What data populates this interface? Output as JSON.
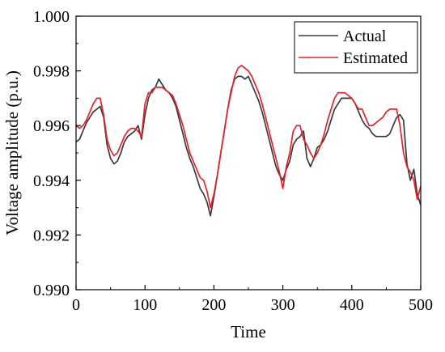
{
  "chart_data": {
    "type": "line",
    "title": "",
    "xlabel": "Time",
    "ylabel": "Voltage amplitude (p.u.)",
    "xlim": [
      0,
      500
    ],
    "ylim": [
      0.99,
      1.0
    ],
    "xticks": [
      0,
      100,
      200,
      300,
      400,
      500
    ],
    "yticks": [
      0.99,
      0.992,
      0.994,
      0.996,
      0.998,
      1.0
    ],
    "xtick_labels": [
      "0",
      "100",
      "200",
      "300",
      "400",
      "500"
    ],
    "ytick_labels": [
      "0.990",
      "0.992",
      "0.994",
      "0.996",
      "0.998",
      "1.000"
    ],
    "grid": false,
    "legend_position": "top-right",
    "colors": {
      "Actual": "#3a3a3a",
      "Estimated": "#e3232a"
    },
    "series": [
      {
        "name": "Actual",
        "x": [
          0,
          5,
          10,
          15,
          20,
          25,
          30,
          35,
          40,
          45,
          50,
          55,
          60,
          65,
          70,
          75,
          80,
          85,
          90,
          95,
          100,
          105,
          110,
          115,
          120,
          125,
          130,
          135,
          140,
          145,
          150,
          155,
          160,
          165,
          170,
          175,
          180,
          185,
          190,
          195,
          200,
          205,
          210,
          215,
          220,
          225,
          230,
          235,
          240,
          245,
          250,
          255,
          260,
          265,
          270,
          275,
          280,
          285,
          290,
          295,
          300,
          305,
          310,
          315,
          320,
          325,
          330,
          335,
          340,
          345,
          350,
          355,
          360,
          365,
          370,
          375,
          380,
          385,
          390,
          395,
          400,
          405,
          410,
          415,
          420,
          425,
          430,
          435,
          440,
          445,
          450,
          455,
          460,
          465,
          470,
          475,
          480,
          485,
          490,
          495,
          500
        ],
        "y": [
          0.9954,
          0.9955,
          0.9958,
          0.9961,
          0.9963,
          0.9965,
          0.9966,
          0.9967,
          0.9963,
          0.9953,
          0.9948,
          0.9946,
          0.9947,
          0.995,
          0.9954,
          0.9956,
          0.9957,
          0.9958,
          0.996,
          0.9955,
          0.9964,
          0.997,
          0.9973,
          0.9974,
          0.9977,
          0.9975,
          0.9973,
          0.9972,
          0.997,
          0.9967,
          0.9962,
          0.9957,
          0.9952,
          0.9948,
          0.9945,
          0.9941,
          0.9937,
          0.9935,
          0.9932,
          0.9927,
          0.9934,
          0.9942,
          0.995,
          0.9958,
          0.9966,
          0.9973,
          0.9977,
          0.9978,
          0.9978,
          0.9977,
          0.9978,
          0.9975,
          0.9972,
          0.9969,
          0.9965,
          0.996,
          0.9955,
          0.995,
          0.9945,
          0.9942,
          0.994,
          0.9944,
          0.9947,
          0.9953,
          0.9955,
          0.9956,
          0.9958,
          0.9948,
          0.9945,
          0.9948,
          0.9952,
          0.9953,
          0.9955,
          0.9958,
          0.9962,
          0.9966,
          0.9968,
          0.997,
          0.997,
          0.997,
          0.997,
          0.9968,
          0.9965,
          0.9962,
          0.996,
          0.9959,
          0.9957,
          0.9956,
          0.9956,
          0.9956,
          0.9956,
          0.9957,
          0.996,
          0.9963,
          0.9964,
          0.9962,
          0.9946,
          0.994,
          0.9944,
          0.9935,
          0.9931
        ]
      },
      {
        "name": "Estimated",
        "x": [
          0,
          5,
          10,
          15,
          20,
          25,
          30,
          35,
          40,
          45,
          50,
          55,
          60,
          65,
          70,
          75,
          80,
          85,
          90,
          95,
          100,
          105,
          110,
          115,
          120,
          125,
          130,
          135,
          140,
          145,
          150,
          155,
          160,
          165,
          170,
          175,
          180,
          185,
          190,
          195,
          200,
          205,
          210,
          215,
          220,
          225,
          230,
          235,
          240,
          245,
          250,
          255,
          260,
          265,
          270,
          275,
          280,
          285,
          290,
          295,
          300,
          305,
          310,
          315,
          320,
          325,
          330,
          335,
          340,
          345,
          350,
          355,
          360,
          365,
          370,
          375,
          380,
          385,
          390,
          395,
          400,
          405,
          410,
          415,
          420,
          425,
          430,
          435,
          440,
          445,
          450,
          455,
          460,
          465,
          470,
          475,
          480,
          485,
          490,
          495,
          500
        ],
        "y": [
          0.996,
          0.9959,
          0.996,
          0.9962,
          0.9965,
          0.9968,
          0.997,
          0.997,
          0.9964,
          0.9955,
          0.9951,
          0.9949,
          0.995,
          0.9953,
          0.9956,
          0.9958,
          0.9959,
          0.9959,
          0.9958,
          0.9956,
          0.9968,
          0.9972,
          0.9972,
          0.9974,
          0.9974,
          0.9974,
          0.9973,
          0.9972,
          0.9971,
          0.9968,
          0.9964,
          0.996,
          0.9955,
          0.995,
          0.9947,
          0.9944,
          0.9941,
          0.994,
          0.9936,
          0.993,
          0.9935,
          0.9942,
          0.995,
          0.9958,
          0.9966,
          0.9972,
          0.9978,
          0.9981,
          0.9982,
          0.9981,
          0.998,
          0.9978,
          0.9975,
          0.9972,
          0.9968,
          0.9963,
          0.9958,
          0.9953,
          0.9948,
          0.9943,
          0.9937,
          0.9945,
          0.995,
          0.9958,
          0.996,
          0.996,
          0.9955,
          0.9953,
          0.995,
          0.9948,
          0.995,
          0.9953,
          0.9957,
          0.9962,
          0.9966,
          0.997,
          0.9972,
          0.9972,
          0.9972,
          0.9971,
          0.997,
          0.9968,
          0.9966,
          0.9966,
          0.9963,
          0.996,
          0.996,
          0.9961,
          0.9962,
          0.9963,
          0.9965,
          0.9966,
          0.9966,
          0.9966,
          0.996,
          0.995,
          0.9945,
          0.9943,
          0.994,
          0.9933,
          0.9938
        ]
      }
    ]
  }
}
